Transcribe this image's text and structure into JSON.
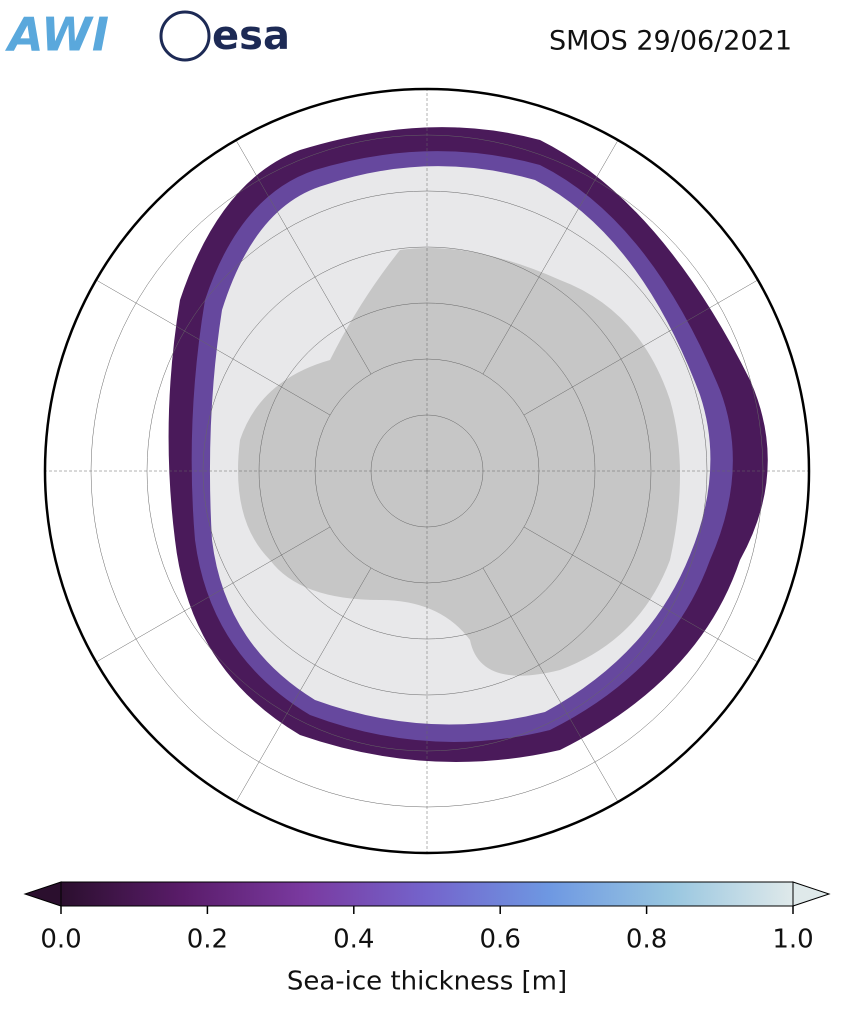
{
  "header": {
    "logos": [
      "AWI",
      "esa"
    ],
    "title": "SMOS 29/06/2021"
  },
  "colorbar": {
    "label": "Sea-ice thickness [m]",
    "lim": [
      0,
      1
    ],
    "ticks": [
      {
        "value": 0,
        "label": "0.0"
      },
      0.2,
      0.4,
      0.6,
      0.8,
      {
        "value": 1,
        "label": "1.0"
      }
    ],
    "colors": [
      "#2b0f2e",
      "#5a1c6a",
      "#7a3aa0",
      "#7464cc",
      "#6e98e2",
      "#98c6e0",
      "#dfe9ea"
    ]
  }
}
